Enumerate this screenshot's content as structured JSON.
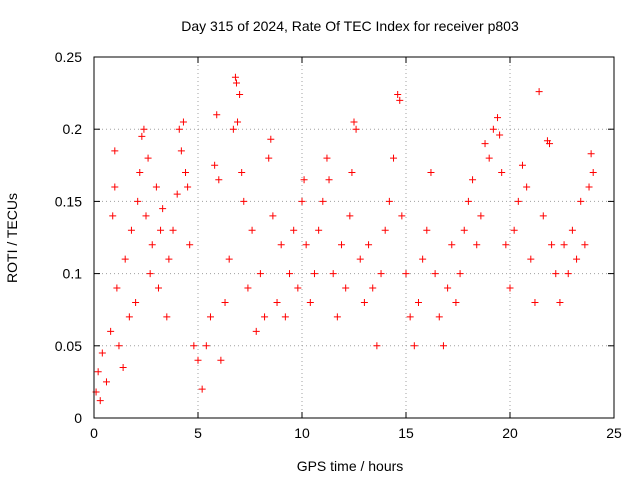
{
  "chart_data": {
    "type": "scatter",
    "title": "Day 315 of 2024, Rate Of TEC Index for receiver p803",
    "xlabel": "GPS time / hours",
    "ylabel": "ROTI / TECUs",
    "xlim": [
      0,
      25
    ],
    "ylim": [
      0,
      0.25
    ],
    "xticks": [
      0,
      5,
      10,
      15,
      20,
      25
    ],
    "yticks": [
      0,
      0.05,
      0.1,
      0.15,
      0.2,
      0.25
    ],
    "xtick_labels": [
      "0",
      "5",
      "10",
      "15",
      "20",
      "25"
    ],
    "ytick_labels": [
      "0",
      "0.05",
      "0.1",
      "0.15",
      "0.2",
      "0.25"
    ],
    "grid": true,
    "marker": "+",
    "color": "#ff0000",
    "series": [
      {
        "values": [
          [
            0.1,
            0.018
          ],
          [
            0.2,
            0.032
          ],
          [
            0.3,
            0.012
          ],
          [
            0.4,
            0.045
          ],
          [
            0.6,
            0.025
          ],
          [
            0.8,
            0.06
          ],
          [
            0.9,
            0.14
          ],
          [
            1.0,
            0.185
          ],
          [
            1.0,
            0.16
          ],
          [
            1.1,
            0.09
          ],
          [
            1.2,
            0.05
          ],
          [
            1.4,
            0.035
          ],
          [
            1.5,
            0.11
          ],
          [
            1.7,
            0.07
          ],
          [
            1.8,
            0.13
          ],
          [
            2.0,
            0.08
          ],
          [
            2.1,
            0.15
          ],
          [
            2.2,
            0.17
          ],
          [
            2.3,
            0.195
          ],
          [
            2.4,
            0.2
          ],
          [
            2.5,
            0.14
          ],
          [
            2.6,
            0.18
          ],
          [
            2.7,
            0.1
          ],
          [
            2.8,
            0.12
          ],
          [
            3.0,
            0.16
          ],
          [
            3.1,
            0.09
          ],
          [
            3.2,
            0.13
          ],
          [
            3.3,
            0.145
          ],
          [
            3.5,
            0.07
          ],
          [
            3.6,
            0.11
          ],
          [
            3.8,
            0.13
          ],
          [
            4.0,
            0.155
          ],
          [
            4.1,
            0.2
          ],
          [
            4.2,
            0.185
          ],
          [
            4.3,
            0.205
          ],
          [
            4.4,
            0.17
          ],
          [
            4.5,
            0.16
          ],
          [
            4.6,
            0.12
          ],
          [
            4.8,
            0.05
          ],
          [
            5.0,
            0.04
          ],
          [
            5.2,
            0.02
          ],
          [
            5.4,
            0.05
          ],
          [
            5.6,
            0.07
          ],
          [
            5.8,
            0.175
          ],
          [
            5.9,
            0.21
          ],
          [
            6.0,
            0.165
          ],
          [
            6.1,
            0.04
          ],
          [
            6.3,
            0.08
          ],
          [
            6.5,
            0.11
          ],
          [
            6.7,
            0.2
          ],
          [
            6.8,
            0.236
          ],
          [
            6.85,
            0.232
          ],
          [
            6.9,
            0.205
          ],
          [
            7.0,
            0.224
          ],
          [
            7.1,
            0.17
          ],
          [
            7.2,
            0.15
          ],
          [
            7.4,
            0.09
          ],
          [
            7.6,
            0.13
          ],
          [
            7.8,
            0.06
          ],
          [
            8.0,
            0.1
          ],
          [
            8.2,
            0.07
          ],
          [
            8.4,
            0.18
          ],
          [
            8.5,
            0.193
          ],
          [
            8.6,
            0.14
          ],
          [
            8.8,
            0.08
          ],
          [
            9.0,
            0.12
          ],
          [
            9.2,
            0.07
          ],
          [
            9.4,
            0.1
          ],
          [
            9.6,
            0.13
          ],
          [
            9.8,
            0.09
          ],
          [
            10.0,
            0.15
          ],
          [
            10.1,
            0.165
          ],
          [
            10.2,
            0.12
          ],
          [
            10.4,
            0.08
          ],
          [
            10.6,
            0.1
          ],
          [
            10.8,
            0.13
          ],
          [
            11.0,
            0.15
          ],
          [
            11.2,
            0.18
          ],
          [
            11.3,
            0.165
          ],
          [
            11.5,
            0.1
          ],
          [
            11.7,
            0.07
          ],
          [
            11.9,
            0.12
          ],
          [
            12.1,
            0.09
          ],
          [
            12.3,
            0.14
          ],
          [
            12.4,
            0.17
          ],
          [
            12.5,
            0.205
          ],
          [
            12.6,
            0.2
          ],
          [
            12.8,
            0.11
          ],
          [
            13.0,
            0.08
          ],
          [
            13.2,
            0.12
          ],
          [
            13.4,
            0.09
          ],
          [
            13.6,
            0.05
          ],
          [
            13.8,
            0.1
          ],
          [
            14.0,
            0.13
          ],
          [
            14.2,
            0.15
          ],
          [
            14.4,
            0.18
          ],
          [
            14.6,
            0.224
          ],
          [
            14.7,
            0.22
          ],
          [
            14.8,
            0.14
          ],
          [
            15.0,
            0.1
          ],
          [
            15.2,
            0.07
          ],
          [
            15.4,
            0.05
          ],
          [
            15.6,
            0.08
          ],
          [
            15.8,
            0.11
          ],
          [
            16.0,
            0.13
          ],
          [
            16.2,
            0.17
          ],
          [
            16.4,
            0.1
          ],
          [
            16.6,
            0.07
          ],
          [
            16.8,
            0.05
          ],
          [
            17.0,
            0.09
          ],
          [
            17.2,
            0.12
          ],
          [
            17.4,
            0.08
          ],
          [
            17.6,
            0.1
          ],
          [
            17.8,
            0.13
          ],
          [
            18.0,
            0.15
          ],
          [
            18.2,
            0.165
          ],
          [
            18.4,
            0.12
          ],
          [
            18.6,
            0.14
          ],
          [
            18.8,
            0.19
          ],
          [
            19.0,
            0.18
          ],
          [
            19.2,
            0.2
          ],
          [
            19.4,
            0.208
          ],
          [
            19.5,
            0.196
          ],
          [
            19.6,
            0.17
          ],
          [
            19.8,
            0.12
          ],
          [
            20.0,
            0.09
          ],
          [
            20.2,
            0.13
          ],
          [
            20.4,
            0.15
          ],
          [
            20.6,
            0.175
          ],
          [
            20.8,
            0.16
          ],
          [
            21.0,
            0.11
          ],
          [
            21.2,
            0.08
          ],
          [
            21.4,
            0.226
          ],
          [
            21.6,
            0.14
          ],
          [
            21.8,
            0.192
          ],
          [
            21.9,
            0.19
          ],
          [
            22.0,
            0.12
          ],
          [
            22.2,
            0.1
          ],
          [
            22.4,
            0.08
          ],
          [
            22.6,
            0.12
          ],
          [
            22.8,
            0.1
          ],
          [
            23.0,
            0.13
          ],
          [
            23.2,
            0.11
          ],
          [
            23.4,
            0.15
          ],
          [
            23.6,
            0.12
          ],
          [
            23.8,
            0.16
          ],
          [
            23.9,
            0.183
          ],
          [
            24.0,
            0.17
          ]
        ]
      }
    ]
  }
}
